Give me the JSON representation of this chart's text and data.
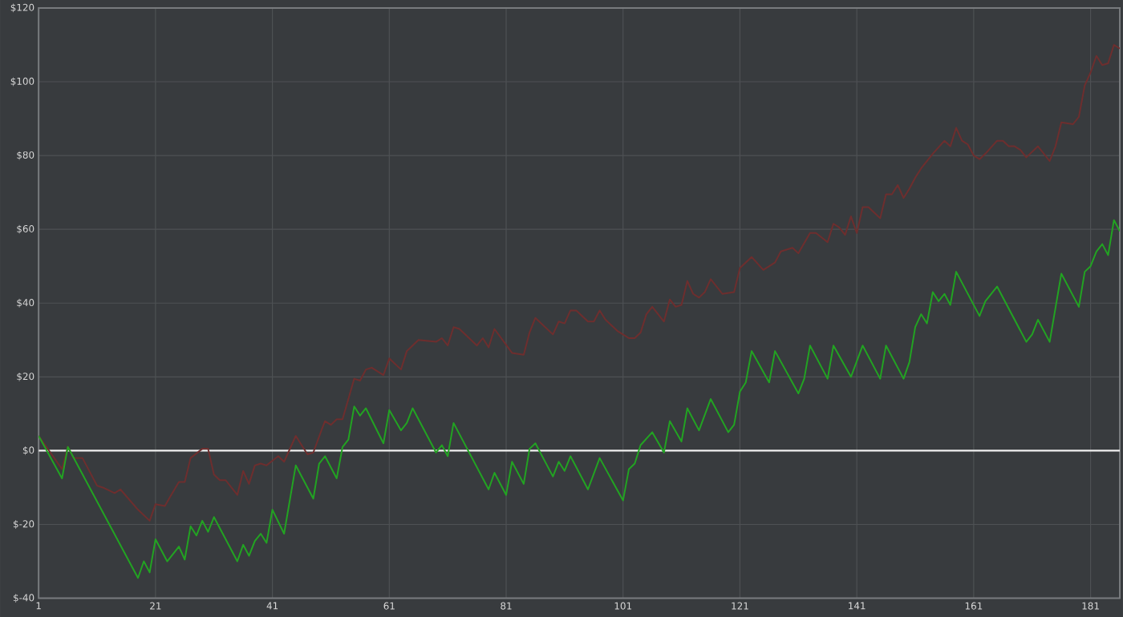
{
  "chart_data": {
    "type": "line",
    "xlim": [
      1,
      186
    ],
    "ylim": [
      -40,
      120
    ],
    "xticks": [
      1,
      21,
      41,
      61,
      81,
      101,
      121,
      141,
      161,
      181
    ],
    "yticks": [
      {
        "value": -40,
        "label": "$-40"
      },
      {
        "value": -20,
        "label": "$-20"
      },
      {
        "value": 0,
        "label": "$0"
      },
      {
        "value": 20,
        "label": "$20"
      },
      {
        "value": 40,
        "label": "$40"
      },
      {
        "value": 60,
        "label": "$60"
      },
      {
        "value": 80,
        "label": "$80"
      },
      {
        "value": 100,
        "label": "$100"
      },
      {
        "value": 120,
        "label": "$120"
      }
    ],
    "grid": true,
    "marker": "none",
    "line_style": "solid",
    "ref_lines": [
      {
        "axis": "y",
        "value": 0,
        "color": "#f0f0f0"
      }
    ],
    "series": [
      {
        "color": "#6e2e2e",
        "x": [
          1,
          5,
          6,
          7,
          8.5,
          11,
          12,
          14,
          15,
          18,
          20,
          21,
          22.6,
          23.5,
          25,
          26,
          27,
          29,
          30,
          31,
          32,
          33,
          35,
          36,
          37,
          38,
          39,
          40,
          42,
          43,
          45,
          47,
          48,
          49.5,
          50,
          51,
          52,
          53,
          55,
          56,
          57,
          58,
          60,
          61,
          63,
          64,
          66,
          69,
          70,
          71,
          72,
          73,
          76,
          77,
          78,
          79,
          82,
          84,
          85,
          86,
          89,
          90,
          91,
          92,
          93,
          95,
          96,
          97,
          98,
          100,
          102,
          103,
          104,
          105,
          106,
          108,
          109,
          110,
          111,
          112,
          113,
          114,
          115,
          116,
          118,
          120,
          121,
          123,
          125,
          127,
          128,
          130,
          131,
          133,
          134,
          136,
          137,
          138,
          139,
          140,
          141,
          142,
          143,
          144,
          145,
          146,
          147,
          148,
          149,
          150,
          151,
          152,
          154,
          156,
          157,
          158,
          159,
          160,
          161,
          162,
          163,
          165,
          166,
          167,
          168,
          169,
          170,
          172,
          174,
          175,
          176,
          178,
          179,
          180,
          181,
          182,
          183,
          184,
          185,
          186
        ],
        "values": [
          4,
          -5,
          1,
          -2,
          -2,
          -9.5,
          -10,
          -11.5,
          -10.5,
          -16,
          -19,
          -14.5,
          -15,
          -12.5,
          -8.5,
          -8.5,
          -2,
          0.5,
          0.5,
          -6.5,
          -8,
          -8,
          -12,
          -5.5,
          -9,
          -4,
          -3.5,
          -4,
          -1.5,
          -3,
          4,
          -1,
          -0.5,
          6,
          8,
          7,
          8.5,
          8.5,
          19.5,
          19,
          22,
          22.5,
          20.5,
          25,
          22,
          27,
          30,
          29.5,
          30.5,
          28.5,
          33.5,
          33,
          28.5,
          30.5,
          28,
          33,
          26.5,
          26,
          32,
          36,
          31.5,
          35,
          34.5,
          38,
          38,
          35,
          35,
          38,
          35.5,
          32.5,
          30.5,
          30.5,
          32,
          37,
          39,
          35,
          41,
          39,
          39.5,
          46,
          42.5,
          41.5,
          43,
          46.5,
          42.5,
          43,
          49.5,
          52.5,
          49,
          51,
          54,
          55,
          53.5,
          59,
          59,
          56.5,
          61.5,
          60.5,
          58.5,
          63.5,
          59,
          66,
          66,
          64.5,
          63,
          69.5,
          69.5,
          72,
          68.5,
          71,
          74,
          76.5,
          80.5,
          84,
          82.5,
          87.5,
          84,
          83,
          80,
          79,
          80.5,
          84,
          84,
          82.5,
          82.5,
          81.5,
          79.5,
          82.5,
          78.5,
          82.5,
          89,
          88.5,
          90.5,
          99,
          102.5,
          107,
          104.5,
          105,
          110,
          109
        ]
      },
      {
        "color": "#22a322",
        "x": [
          1,
          5,
          6,
          18,
          19,
          20,
          21,
          23,
          25,
          26,
          27,
          28,
          29,
          30,
          31,
          35,
          36,
          37,
          38,
          39,
          40,
          41,
          43,
          45,
          48,
          49,
          50,
          52,
          53,
          54,
          55,
          56,
          57,
          60,
          61,
          63,
          64,
          65,
          69,
          70,
          71,
          72,
          78,
          79,
          81,
          82,
          84,
          85,
          86,
          89,
          90,
          91,
          92,
          95,
          97,
          101,
          102,
          103,
          104,
          106,
          108,
          109,
          111,
          112,
          114,
          116,
          119,
          120,
          121,
          122,
          123,
          126,
          127,
          131,
          132,
          133,
          136,
          137,
          140,
          142,
          145,
          146,
          149,
          150,
          151,
          152,
          153,
          154,
          155,
          156,
          157,
          158,
          162,
          163,
          165,
          170,
          171,
          172,
          174,
          176,
          179,
          180,
          181,
          182,
          183,
          184,
          185,
          186
        ],
        "values": [
          4,
          -7.5,
          1,
          -34.5,
          -30,
          -33,
          -24,
          -30,
          -26,
          -29.5,
          -20.5,
          -23,
          -19,
          -22,
          -18,
          -30,
          -25.5,
          -28.5,
          -24.5,
          -22.5,
          -25,
          -16,
          -22.5,
          -4,
          -13,
          -3.5,
          -1.5,
          -7.5,
          1,
          3,
          12,
          9.5,
          11.5,
          2,
          11,
          5.5,
          7.5,
          11.5,
          -0.5,
          1.5,
          -1.5,
          7.5,
          -10.5,
          -6,
          -12,
          -3,
          -9,
          0.5,
          2,
          -7,
          -3,
          -5.5,
          -1.5,
          -10.5,
          -2,
          -13.5,
          -5,
          -3.5,
          1.5,
          5,
          -0.5,
          8,
          2.5,
          11.5,
          5.5,
          14,
          5,
          7,
          16,
          18.5,
          27,
          18.5,
          27,
          15.5,
          19.5,
          28.5,
          19.5,
          28.5,
          20,
          28.5,
          19.5,
          28.5,
          19.5,
          24,
          33.5,
          37,
          34.5,
          43,
          40.5,
          42.5,
          39.5,
          48.5,
          36.5,
          40.5,
          44.5,
          29.5,
          31.5,
          35.5,
          29.5,
          48,
          39,
          48.5,
          50,
          54,
          56,
          53,
          62.5,
          59.5
        ]
      }
    ]
  }
}
